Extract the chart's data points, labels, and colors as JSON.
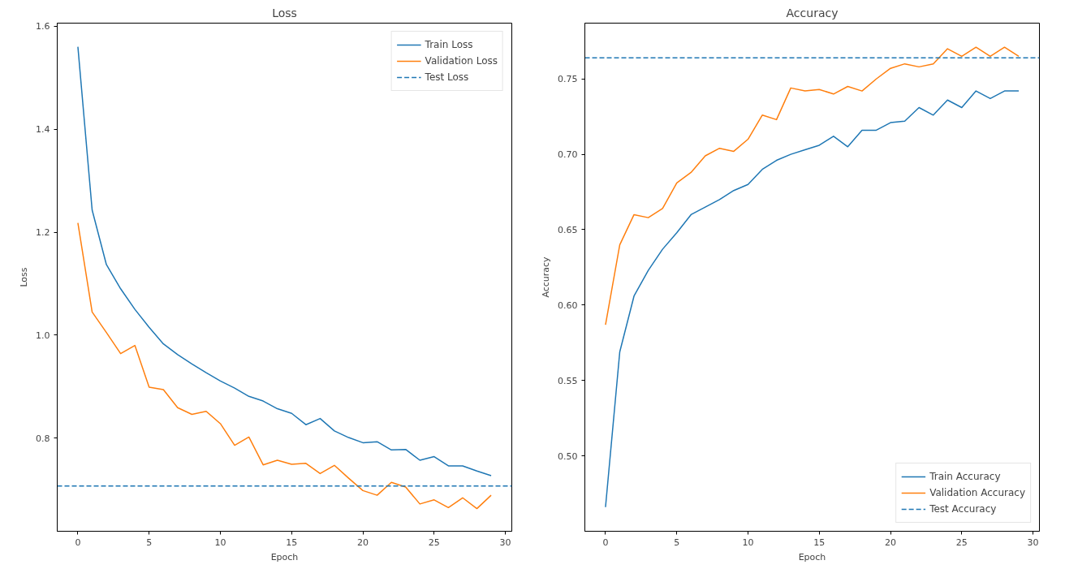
{
  "chart_data": [
    {
      "type": "line",
      "title": "Loss",
      "xlabel": "Epoch",
      "ylabel": "Loss",
      "x": [
        0,
        1,
        2,
        3,
        4,
        5,
        6,
        7,
        8,
        9,
        10,
        11,
        12,
        13,
        14,
        15,
        16,
        17,
        18,
        19,
        20,
        21,
        22,
        23,
        24,
        25,
        26,
        27,
        28,
        29
      ],
      "series": [
        {
          "name": "Train Loss",
          "color": "#1f77b4",
          "values": [
            1.56,
            1.243,
            1.137,
            1.09,
            1.05,
            1.015,
            0.983,
            0.962,
            0.944,
            0.927,
            0.911,
            0.897,
            0.881,
            0.872,
            0.857,
            0.848,
            0.826,
            0.838,
            0.814,
            0.801,
            0.791,
            0.793,
            0.777,
            0.778,
            0.757,
            0.764,
            0.746,
            0.746,
            0.736,
            0.727
          ]
        },
        {
          "name": "Validation Loss",
          "color": "#ff7f0e",
          "values": [
            1.218,
            1.045,
            1.005,
            0.964,
            0.98,
            0.899,
            0.894,
            0.859,
            0.846,
            0.852,
            0.828,
            0.786,
            0.802,
            0.748,
            0.757,
            0.749,
            0.751,
            0.731,
            0.747,
            0.722,
            0.698,
            0.689,
            0.714,
            0.705,
            0.672,
            0.68,
            0.665,
            0.684,
            0.663,
            0.689
          ]
        }
      ],
      "ref_lines": [
        {
          "axis": "y",
          "value": 0.707,
          "label": "Test Loss",
          "color": "#1f77b4",
          "line_style": "dashed"
        }
      ],
      "xlim": [
        -1.45,
        30.45
      ],
      "xticks": [
        0,
        5,
        10,
        15,
        20,
        25,
        30
      ],
      "ylim": [
        0.619,
        1.606
      ],
      "yticks": [
        {
          "value": 0.8,
          "label": "0.8"
        },
        {
          "value": 1.0,
          "label": "1.0"
        },
        {
          "value": 1.2,
          "label": "1.2"
        },
        {
          "value": 1.4,
          "label": "1.4"
        },
        {
          "value": 1.6,
          "label": "1.6"
        }
      ],
      "legend": "top right",
      "grid": false,
      "line_style": "solid",
      "marker": "none"
    },
    {
      "type": "line",
      "title": "Accuracy",
      "xlabel": "Epoch",
      "ylabel": "Accuracy",
      "x": [
        0,
        1,
        2,
        3,
        4,
        5,
        6,
        7,
        8,
        9,
        10,
        11,
        12,
        13,
        14,
        15,
        16,
        17,
        18,
        19,
        20,
        21,
        22,
        23,
        24,
        25,
        26,
        27,
        28,
        29
      ],
      "series": [
        {
          "name": "Train Accuracy",
          "color": "#1f77b4",
          "values": [
            0.466,
            0.569,
            0.606,
            0.623,
            0.637,
            0.648,
            0.66,
            0.665,
            0.67,
            0.676,
            0.68,
            0.69,
            0.696,
            0.7,
            0.703,
            0.706,
            0.712,
            0.705,
            0.716,
            0.716,
            0.721,
            0.722,
            0.731,
            0.726,
            0.736,
            0.731,
            0.742,
            0.737,
            0.742,
            0.742
          ]
        },
        {
          "name": "Validation Accuracy",
          "color": "#ff7f0e",
          "values": [
            0.587,
            0.64,
            0.66,
            0.658,
            0.664,
            0.681,
            0.688,
            0.699,
            0.704,
            0.702,
            0.71,
            0.726,
            0.723,
            0.744,
            0.742,
            0.743,
            0.74,
            0.745,
            0.742,
            0.75,
            0.757,
            0.76,
            0.758,
            0.76,
            0.77,
            0.765,
            0.771,
            0.765,
            0.771,
            0.765
          ]
        }
      ],
      "ref_lines": [
        {
          "axis": "y",
          "value": 0.764,
          "label": "Test Accuracy",
          "color": "#1f77b4",
          "line_style": "dashed"
        }
      ],
      "xlim": [
        -1.45,
        30.45
      ],
      "xticks": [
        0,
        5,
        10,
        15,
        20,
        25,
        30
      ],
      "ylim": [
        0.45,
        0.787
      ],
      "yticks": [
        {
          "value": 0.5,
          "label": "0.50"
        },
        {
          "value": 0.55,
          "label": "0.55"
        },
        {
          "value": 0.6,
          "label": "0.60"
        },
        {
          "value": 0.65,
          "label": "0.65"
        },
        {
          "value": 0.7,
          "label": "0.70"
        },
        {
          "value": 0.75,
          "label": "0.75"
        }
      ],
      "legend": "bottom right",
      "grid": false,
      "line_style": "solid",
      "marker": "none"
    }
  ]
}
